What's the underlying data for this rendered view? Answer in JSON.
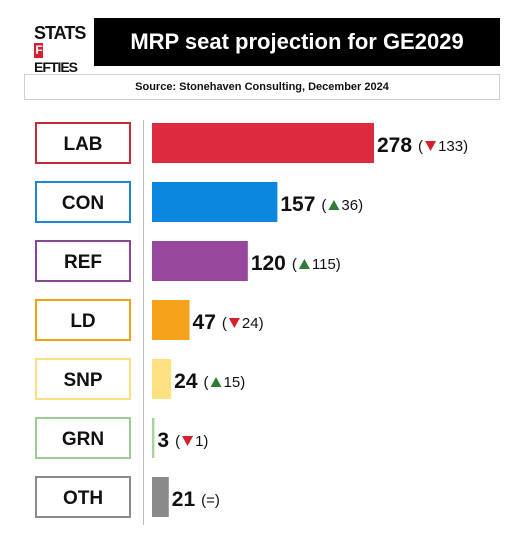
{
  "logo": {
    "line1": "STATS",
    "line2_letter": "F",
    "line2_rest": "EFTIES"
  },
  "title": "MRP seat projection for GE2029",
  "source": "Source: Stonehaven Consulting, December 2024",
  "chart_data": {
    "type": "bar",
    "orientation": "horizontal",
    "categories": [
      "LAB",
      "CON",
      "REF",
      "LD",
      "SNP",
      "GRN",
      "OTH"
    ],
    "values": [
      278,
      157,
      120,
      47,
      24,
      3,
      21
    ],
    "changes": [
      {
        "direction": "down",
        "value": "133"
      },
      {
        "direction": "up",
        "value": "36"
      },
      {
        "direction": "up",
        "value": "115"
      },
      {
        "direction": "down",
        "value": "24"
      },
      {
        "direction": "up",
        "value": "15"
      },
      {
        "direction": "down",
        "value": "1"
      },
      {
        "direction": "same",
        "value": "="
      }
    ],
    "colors": [
      "#dc2b3f",
      "#0c87e0",
      "#98489c",
      "#f5a31a",
      "#fde07f",
      "#a6d49a",
      "#8a8a8a"
    ],
    "label_border_colors": [
      "#c72a3a",
      "#1a86d1",
      "#8a4796",
      "#f0a215",
      "#f8df86",
      "#9ccc92",
      "#8a8a8a"
    ],
    "up_color": "#2e7d32",
    "down_color": "#d62030",
    "xlim": [
      0,
      278
    ],
    "grid": false,
    "legend": "none"
  }
}
